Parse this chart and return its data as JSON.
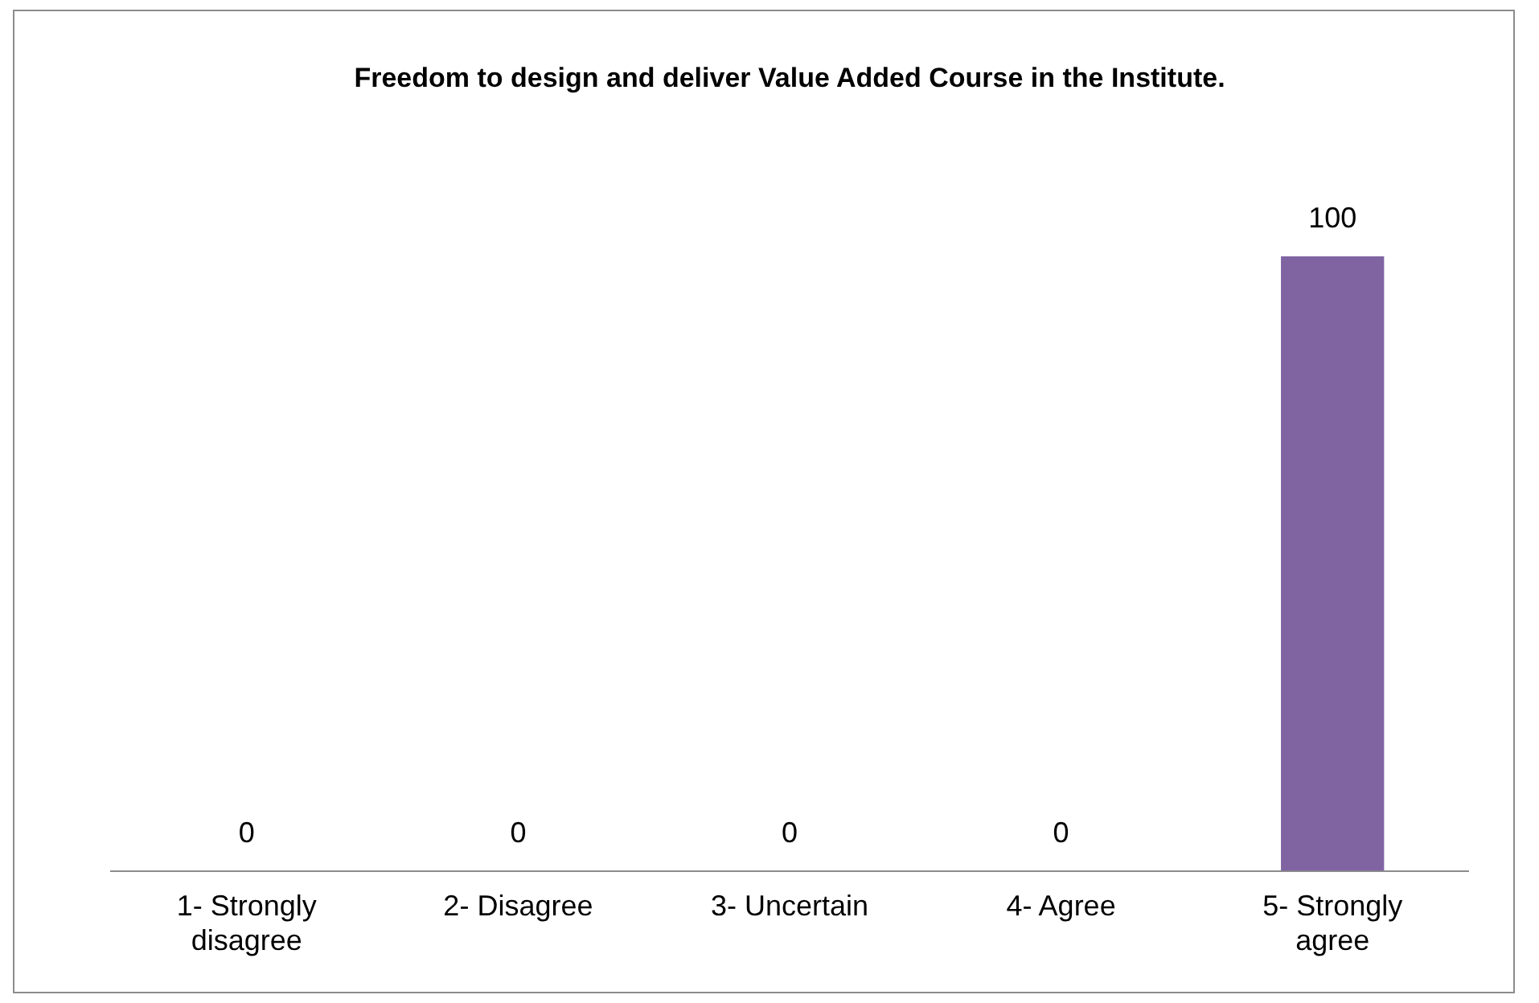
{
  "chart_data": {
    "type": "bar",
    "title": "Freedom to design and deliver Value Added Course in the Institute.",
    "categories": [
      "1- Strongly disagree",
      "2- Disagree",
      "3- Uncertain",
      "4- Agree",
      "5- Strongly agree"
    ],
    "values": [
      0,
      0,
      0,
      0,
      100
    ],
    "color": "#8064a2",
    "tick_labels": "x",
    "data_labels": true,
    "grid": false,
    "legend": false
  }
}
